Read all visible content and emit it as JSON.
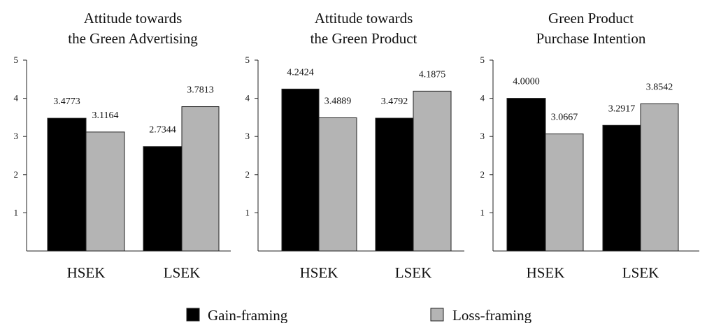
{
  "chart_data": [
    {
      "type": "bar",
      "title_lines": [
        "Attitude towards",
        "the Green Advertising"
      ],
      "categories": [
        "HSEK",
        "LSEK"
      ],
      "series": [
        {
          "name": "Gain-framing",
          "values": [
            3.4773,
            2.7344
          ],
          "labels": [
            "3.4773",
            "2.7344"
          ]
        },
        {
          "name": "Loss-framing",
          "values": [
            3.1164,
            3.7813
          ],
          "labels": [
            "3.1164",
            "3.7813"
          ]
        }
      ],
      "ylim": [
        0,
        5
      ],
      "yticks": [
        "1",
        "2",
        "3",
        "4",
        "5"
      ]
    },
    {
      "type": "bar",
      "title_lines": [
        "Attitude towards",
        "the Green Product"
      ],
      "categories": [
        "HSEK",
        "LSEK"
      ],
      "series": [
        {
          "name": "Gain-framing",
          "values": [
            4.2424,
            3.4792
          ],
          "labels": [
            "4.2424",
            "3.4792"
          ]
        },
        {
          "name": "Loss-framing",
          "values": [
            3.4889,
            4.1875
          ],
          "labels": [
            "3.4889",
            "4.1875"
          ]
        }
      ],
      "ylim": [
        0,
        5
      ],
      "yticks": [
        "1",
        "2",
        "3",
        "4",
        "5"
      ]
    },
    {
      "type": "bar",
      "title_lines": [
        "Green Product",
        "Purchase Intention"
      ],
      "categories": [
        "HSEK",
        "LSEK"
      ],
      "series": [
        {
          "name": "Gain-framing",
          "values": [
            4.0,
            3.2917
          ],
          "labels": [
            "4.0000",
            "3.2917"
          ]
        },
        {
          "name": "Loss-framing",
          "values": [
            3.0667,
            3.8542
          ],
          "labels": [
            "3.0667",
            "3.8542"
          ]
        }
      ],
      "ylim": [
        0,
        5
      ],
      "yticks": [
        "1",
        "2",
        "3",
        "4",
        "5"
      ]
    }
  ],
  "legend": {
    "items": [
      {
        "label": "Gain-framing",
        "color": "#000000"
      },
      {
        "label": "Loss-framing",
        "color": "#b4b4b4"
      }
    ],
    "placement": "bottom"
  },
  "colors": {
    "gain": "#000000",
    "loss": "#b4b4b4",
    "bar_stroke": "#222222"
  }
}
